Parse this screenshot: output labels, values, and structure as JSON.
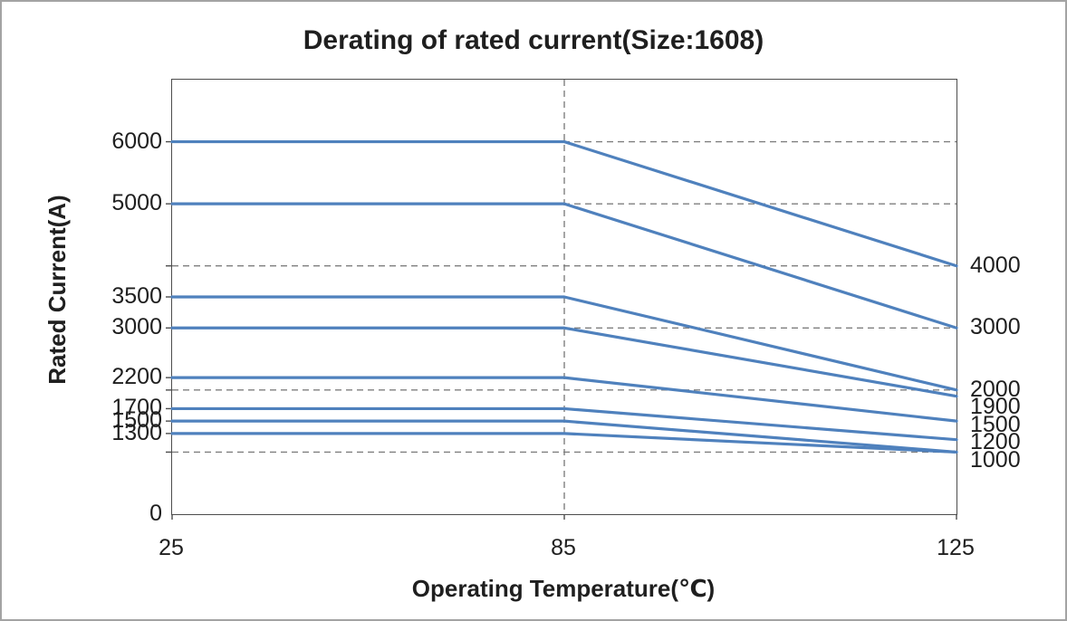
{
  "window": {
    "background": "#ffffff",
    "border_color": "#a3a3a3"
  },
  "chart_data": {
    "type": "line",
    "title": "Derating of rated current(Size:1608)",
    "xlabel": "Operating Temperature(℃)",
    "ylabel": "Rated Current(A)",
    "x": [
      25,
      85,
      125
    ],
    "x_positions_pct": [
      0,
      50,
      100
    ],
    "ylim": [
      0,
      7000
    ],
    "y_tick_labels": [
      6000,
      5000,
      3500,
      3000,
      2200,
      1700,
      1500,
      1300,
      0
    ],
    "unlabeled_y_ticks": [
      4000,
      2000,
      1000
    ],
    "gridline_values": [
      6000,
      5000,
      4000,
      3000,
      2000,
      1000
    ],
    "right_end_labels": [
      4000,
      3000,
      2000,
      1900,
      1500,
      1200,
      1000
    ],
    "reference_line_x": 85,
    "grid": "dashed-horizontal",
    "legend_position": "none",
    "series": [
      {
        "name": "6000",
        "x": [
          25,
          85,
          125
        ],
        "values": [
          6000,
          6000,
          4000
        ]
      },
      {
        "name": "5000",
        "x": [
          25,
          85,
          125
        ],
        "values": [
          5000,
          5000,
          3000
        ]
      },
      {
        "name": "3500",
        "x": [
          25,
          85,
          125
        ],
        "values": [
          3500,
          3500,
          2000
        ]
      },
      {
        "name": "3000",
        "x": [
          25,
          85,
          125
        ],
        "values": [
          3000,
          3000,
          1900
        ]
      },
      {
        "name": "2200",
        "x": [
          25,
          85,
          125
        ],
        "values": [
          2200,
          2200,
          1500
        ]
      },
      {
        "name": "1700",
        "x": [
          25,
          85,
          125
        ],
        "values": [
          1700,
          1700,
          1200
        ]
      },
      {
        "name": "1500",
        "x": [
          25,
          85,
          125
        ],
        "values": [
          1500,
          1500,
          1000
        ]
      },
      {
        "name": "1300",
        "x": [
          25,
          85,
          125
        ],
        "values": [
          1300,
          1300,
          1000
        ]
      }
    ],
    "colors": {
      "series_line": "#4f81bd",
      "gridline": "#7f7f7f",
      "axis_frame": "#4d4d4d",
      "text": "#1f1f1f"
    }
  }
}
